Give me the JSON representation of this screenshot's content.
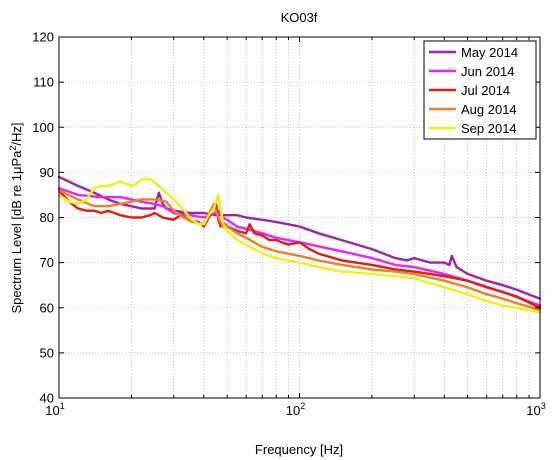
{
  "chart_data": {
    "type": "line",
    "title": "KO03f",
    "xlabel": "Frequency [Hz]",
    "ylabel_parts": {
      "main": "Spectrum Level [dB re 1",
      "mu": "μ",
      "pa": "Pa",
      "sq": "2",
      "tail": "/Hz]"
    },
    "xscale": "log",
    "xlim": [
      10,
      1000
    ],
    "ylim": [
      40,
      120
    ],
    "grid": "dotted major and minor",
    "legend_position": "top-right",
    "x_ticks": [
      {
        "value": 10,
        "base": "10",
        "exp": "1"
      },
      {
        "value": 100,
        "base": "10",
        "exp": "2"
      },
      {
        "value": 1000,
        "base": "10",
        "exp": "3"
      }
    ],
    "y_ticks": [
      40,
      50,
      60,
      70,
      80,
      90,
      100,
      110,
      120
    ],
    "series": [
      {
        "name": "May 2014",
        "color": "#a020a8",
        "x": [
          10,
          12,
          14,
          16,
          18,
          20,
          22,
          25,
          26,
          27,
          28,
          30,
          35,
          40,
          45,
          50,
          55,
          60,
          70,
          80,
          90,
          100,
          120,
          150,
          200,
          250,
          280,
          300,
          350,
          400,
          420,
          430,
          450,
          500,
          600,
          700,
          800,
          1000
        ],
        "y": [
          89,
          87,
          85.5,
          84,
          83,
          82.5,
          82,
          82,
          85.5,
          83,
          82,
          81.5,
          81,
          81,
          80.5,
          80.5,
          80.5,
          80,
          79.5,
          79,
          78.5,
          78,
          76.5,
          75,
          73,
          71,
          70.5,
          71,
          70,
          70,
          69.5,
          71.5,
          69,
          67.5,
          66,
          65,
          64,
          62
        ]
      },
      {
        "name": "Jun 2014",
        "color": "#ee22ee",
        "x": [
          10,
          12,
          15,
          18,
          20,
          22,
          25,
          27,
          30,
          35,
          40,
          43,
          46,
          48,
          50,
          55,
          60,
          70,
          80,
          100,
          150,
          200,
          250,
          300,
          400,
          500,
          700,
          1000
        ],
        "y": [
          86.5,
          85,
          84.5,
          84.5,
          84,
          83.5,
          83,
          82.5,
          81,
          80.5,
          80,
          80.5,
          81.5,
          80,
          79.5,
          78,
          77.5,
          76.5,
          75.5,
          74.5,
          72.5,
          71,
          69.5,
          69,
          67.5,
          66,
          63.5,
          60.5
        ]
      },
      {
        "name": "Jul 2014",
        "color": "#e11a14",
        "x": [
          10,
          11,
          12,
          13,
          14,
          15,
          16,
          17,
          18,
          20,
          22,
          24,
          25,
          27,
          30,
          32,
          35,
          38,
          40,
          42,
          44,
          45,
          46,
          47,
          48,
          50,
          55,
          60,
          62,
          65,
          70,
          75,
          80,
          90,
          100,
          110,
          120,
          150,
          200,
          250,
          300,
          400,
          500,
          600,
          700,
          800,
          1000
        ],
        "y": [
          86,
          83.5,
          82,
          81.5,
          81.5,
          81,
          81.5,
          81,
          80.5,
          80,
          80,
          80.5,
          81,
          80,
          79.5,
          80.5,
          79.5,
          79,
          78,
          80,
          82.5,
          83,
          79.5,
          78,
          79,
          78,
          77,
          76.5,
          78.5,
          76.5,
          76,
          75,
          75,
          74,
          74.5,
          73,
          72,
          70.5,
          69.5,
          68.5,
          68,
          67,
          66,
          64.5,
          63.5,
          62.5,
          60
        ]
      },
      {
        "name": "Aug 2014",
        "color": "#ee8020",
        "x": [
          10,
          12,
          14,
          16,
          18,
          20,
          22,
          25,
          28,
          30,
          33,
          36,
          40,
          44,
          46,
          48,
          50,
          55,
          60,
          70,
          80,
          100,
          120,
          150,
          200,
          250,
          300,
          400,
          500,
          600,
          700,
          800,
          1000
        ],
        "y": [
          86,
          84,
          82.5,
          82.5,
          83,
          83.5,
          84,
          84,
          83.5,
          81.5,
          80,
          79,
          78.5,
          83,
          80,
          78,
          78,
          76.5,
          75.5,
          73.5,
          72.5,
          71.5,
          70.5,
          69.5,
          68.5,
          68,
          67.5,
          66,
          64.5,
          63,
          62,
          61,
          59.5
        ]
      },
      {
        "name": "Sep 2014",
        "color": "#f4f014",
        "x": [
          10,
          11,
          12,
          13,
          14,
          15,
          16,
          17,
          18,
          19,
          20,
          21,
          22,
          24,
          26,
          28,
          30,
          32,
          35,
          38,
          40,
          42,
          44,
          46,
          48,
          50,
          55,
          60,
          70,
          80,
          100,
          120,
          150,
          200,
          250,
          300,
          400,
          500,
          600,
          700,
          800,
          1000
        ],
        "y": [
          85,
          83.5,
          83,
          84,
          86.5,
          87,
          87,
          87.5,
          88,
          87.5,
          87,
          87.5,
          88.5,
          88.5,
          87,
          85.5,
          84,
          82.5,
          80,
          78.5,
          78.5,
          80.5,
          82,
          85,
          79,
          77,
          75,
          74,
          72,
          71,
          70,
          69,
          68,
          67.5,
          67,
          66.5,
          64.5,
          63,
          61.5,
          60.5,
          60,
          59
        ]
      }
    ]
  }
}
